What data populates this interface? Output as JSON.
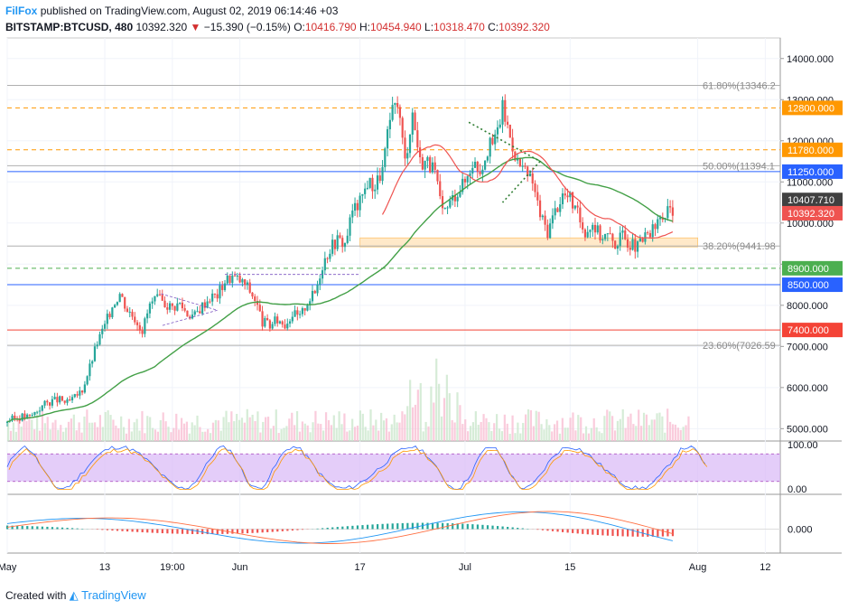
{
  "header": {
    "brand": "FilFox",
    "published": "published on TradingView.com, August 02, 2019 06:14:46 +03",
    "symbol": "BITSTAMP:BTCUSD, 480",
    "last": "10392.320",
    "change": "−15.390 (−0.15%)",
    "o_label": "O:",
    "o": "10416.790",
    "h_label": "H:",
    "h": "10454.940",
    "l_label": "L:",
    "l": "10318.470",
    "c_label": "C:",
    "c": "10392.320"
  },
  "footer": {
    "created": "Created with",
    "brand": "TradingView"
  },
  "colors": {
    "up": "#26a69a",
    "down": "#ef5350",
    "ma_slow": "#43a047",
    "ma_fast": "#ef5350",
    "orange": "#ff9800",
    "blue": "#2962ff",
    "green": "#4caf50",
    "red": "#f44336",
    "fib": "#b0b0b0",
    "stoch_band": "#d9b8f7",
    "grid": "#f0f3fa"
  },
  "chart_data": {
    "type": "candlestick",
    "symbol": "BITSTAMP:BTCUSD",
    "timeframe": "480",
    "ylim": [
      4700,
      14500
    ],
    "y_ticks": [
      5000,
      6000,
      7000,
      8000,
      9000,
      10000,
      11000,
      12000,
      13000,
      14000
    ],
    "y_tick_labels": [
      "5000.000",
      "6000.000",
      "7000.000",
      "8000.000",
      "9000.000",
      "10000.000",
      "11000.000",
      "12000.000",
      "13000.000",
      "14000.000"
    ],
    "x_tick_labels": [
      "May",
      "13",
      "19:00",
      "Jun",
      "17",
      "Jul",
      "15",
      "Aug",
      "12"
    ],
    "x_tick_days": [
      0,
      13,
      22,
      31,
      47,
      61,
      75,
      92,
      101
    ],
    "x_range_days": [
      0,
      103
    ],
    "closes": [
      5200,
      5250,
      5300,
      5280,
      5450,
      5600,
      5680,
      5700,
      5620,
      5750,
      5950,
      6500,
      7100,
      7500,
      8000,
      8300,
      7900,
      7700,
      7400,
      8000,
      8150,
      8050,
      7950,
      8050,
      7800,
      7750,
      8000,
      8200,
      8250,
      8600,
      8700,
      8600,
      8450,
      8150,
      7600,
      7500,
      7650,
      7550,
      7800,
      7700,
      8100,
      8300,
      9000,
      9400,
      9600,
      9500,
      10300,
      10500,
      11000,
      10900,
      11300,
      12500,
      13000,
      11500,
      12700,
      11500,
      11500,
      11200,
      10200,
      10500,
      10800,
      11000,
      11500,
      11300,
      11800,
      12000,
      12800,
      12100,
      11500,
      11200,
      11000,
      10200,
      9800,
      10300,
      10700,
      10600,
      10200,
      9800,
      10000,
      9700,
      9700,
      9500,
      9700,
      9500,
      9400,
      9650,
      9800,
      10100,
      10250,
      10400
    ]
  },
  "levels": [
    {
      "value": 12800,
      "label": "12800.000",
      "style": "dash",
      "color": "#ff9800"
    },
    {
      "value": 11780,
      "label": "11780.000",
      "style": "dash",
      "color": "#ff9800"
    },
    {
      "value": 11250,
      "label": "11250.000",
      "style": "solid",
      "color": "#2962ff"
    },
    {
      "value": 8900,
      "label": "8900.000",
      "style": "dash",
      "color": "#4caf50"
    },
    {
      "value": 8500,
      "label": "8500.000",
      "style": "solid",
      "color": "#2962ff"
    },
    {
      "value": 7400,
      "label": "7400.000",
      "style": "solid",
      "color": "#f44336"
    }
  ],
  "fibs": [
    {
      "value": 13346.2,
      "label": "61.80%(13346.2"
    },
    {
      "value": 11394.1,
      "label": "50.00%(11394.1"
    },
    {
      "value": 9441.98,
      "label": "38.20%(9441.98"
    },
    {
      "value": 7026.59,
      "label": "23.60%(7026.59"
    }
  ],
  "price_tags": [
    {
      "value": 10407.71,
      "label": "10407.710",
      "color": "#404040"
    },
    {
      "value": 10392.32,
      "label": "10392.320",
      "color": "#ef5350"
    }
  ],
  "stoch": {
    "ticks": [
      "100.00",
      "0.00"
    ],
    "upper": 80,
    "lower": 20
  },
  "macd": {
    "ticks": [
      "0.000"
    ]
  }
}
